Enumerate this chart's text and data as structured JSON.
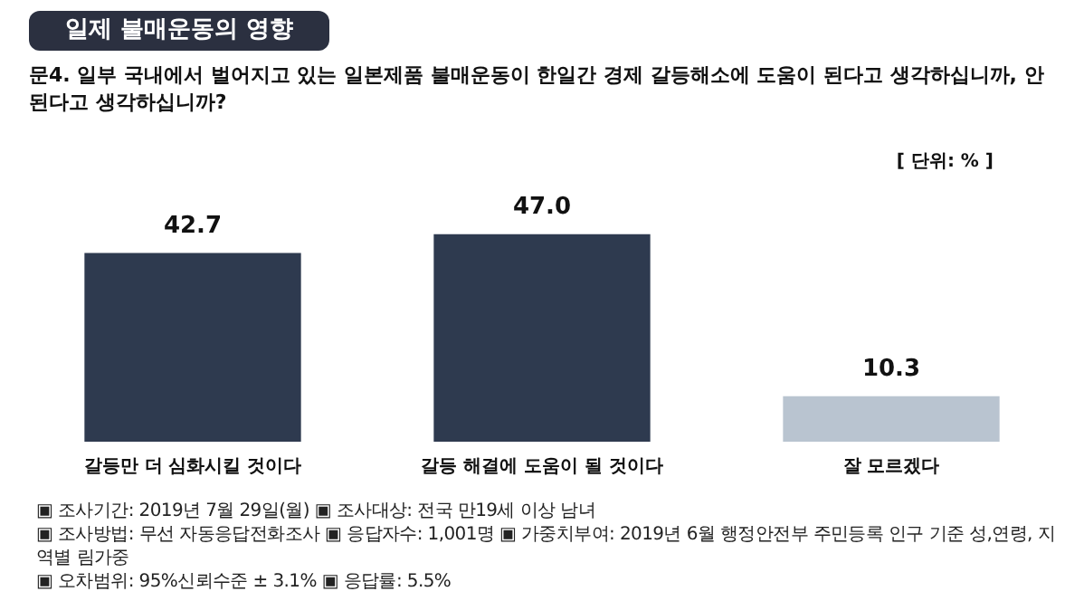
{
  "chart_data": {
    "type": "bar",
    "title": "일제 불매운동의 영향",
    "subtitle": "문4. 일부 국내에서  벌어지고 있는 일본제품 불매운동이 한일간 경제 갈등해소에 도움이 된다고 생각하십니까, 안된다고 생각하십니까?",
    "categories": [
      "갈등만 더 심화시킬 것이다",
      "갈등 해결에 도움이 될 것이다",
      "잘 모르겠다"
    ],
    "values": [
      42.7,
      47.0,
      10.3
    ],
    "colors": [
      "#2e3a4f",
      "#2e3a4f",
      "#b9c4d0"
    ],
    "value_labels": [
      "42.7",
      "47.0",
      "10.3"
    ],
    "tick_labels": "x",
    "grid": false,
    "legend": false,
    "annotations": [
      "[ 단위: % ]",
      "▣ 조사기간: 2019년 7월 29일(월) ▣ 조사대상: 전국 만19세 이상 남녀",
      "▣ 조사방법: 무선 자동응답전화조사 ▣ 응답자수: 1,001명 ▣ 가중치부여: 2019년 6월 행정안전부 주민등록 인구 기준 성,연령, 지역별 림가중",
      "▣ 오차범위: 95%신뢰수준 ± 3.1% ▣ 응답률: 5.5%"
    ]
  }
}
